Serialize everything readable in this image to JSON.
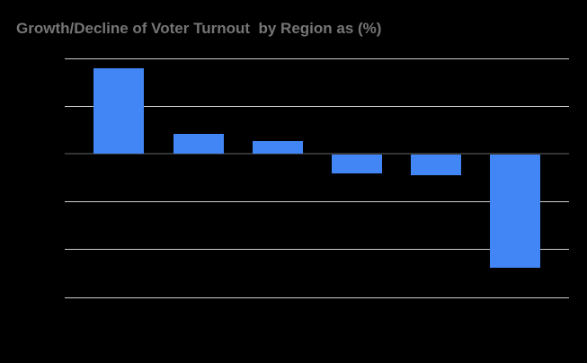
{
  "title": "Growth/Decline of Voter Turnout  by Region as (%)",
  "colors": {
    "background": "#000000",
    "title_text": "#757575",
    "bar": "#4285f4",
    "gridline": "#cccccc",
    "baseline": "#333333"
  },
  "chart_data": {
    "type": "bar",
    "title": "Growth/Decline of Voter Turnout  by Region as (%)",
    "categories": [
      "",
      "",
      "",
      "",
      "",
      ""
    ],
    "values": [
      9,
      2.1,
      1.4,
      -1.9,
      -2.1,
      -11.8
    ],
    "ylim": [
      -15,
      10
    ],
    "gridline_step": 5,
    "grid": true,
    "legend_position": "none",
    "x_axis_tick_labels_visible": false,
    "y_axis_tick_labels_visible": false,
    "bar_color": "#4285f4"
  }
}
